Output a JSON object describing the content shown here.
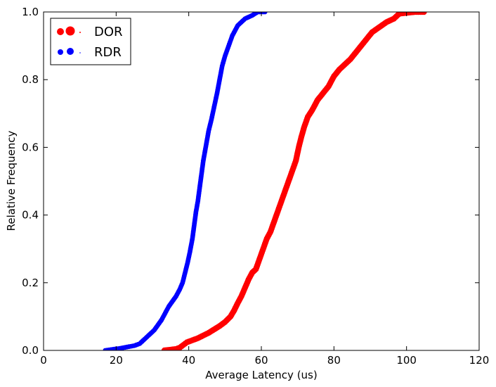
{
  "chart_data": {
    "type": "scatter",
    "title": "",
    "xlabel": "Average Latency (us)",
    "ylabel": "Relative Frequency",
    "xlim": [
      0,
      120
    ],
    "ylim": [
      0,
      1.0
    ],
    "xticks": [
      "0",
      "20",
      "40",
      "60",
      "80",
      "100",
      "120"
    ],
    "yticks": [
      "0.0",
      "0.2",
      "0.4",
      "0.6",
      "0.8",
      "1.0"
    ],
    "grid": false,
    "legend_position": "top-left",
    "series": [
      {
        "name": "DOR",
        "color": "#ff0000",
        "points": [
          [
            33.3,
            0.0
          ],
          [
            36.5,
            0.004
          ],
          [
            37.5,
            0.008
          ],
          [
            38.5,
            0.016
          ],
          [
            39.5,
            0.024
          ],
          [
            41.0,
            0.03
          ],
          [
            42.5,
            0.036
          ],
          [
            44.0,
            0.044
          ],
          [
            45.5,
            0.052
          ],
          [
            47.0,
            0.062
          ],
          [
            48.5,
            0.072
          ],
          [
            50.0,
            0.084
          ],
          [
            51.5,
            0.1
          ],
          [
            52.5,
            0.118
          ],
          [
            53.5,
            0.14
          ],
          [
            54.5,
            0.16
          ],
          [
            55.5,
            0.185
          ],
          [
            56.5,
            0.21
          ],
          [
            57.5,
            0.23
          ],
          [
            58.5,
            0.24
          ],
          [
            59.5,
            0.27
          ],
          [
            60.5,
            0.3
          ],
          [
            61.5,
            0.33
          ],
          [
            62.5,
            0.35
          ],
          [
            63.5,
            0.38
          ],
          [
            64.5,
            0.41
          ],
          [
            65.5,
            0.44
          ],
          [
            66.5,
            0.47
          ],
          [
            67.5,
            0.5
          ],
          [
            68.5,
            0.53
          ],
          [
            69.5,
            0.56
          ],
          [
            70.3,
            0.6
          ],
          [
            71.0,
            0.63
          ],
          [
            71.8,
            0.66
          ],
          [
            72.8,
            0.69
          ],
          [
            74.0,
            0.71
          ],
          [
            75.5,
            0.74
          ],
          [
            77.0,
            0.76
          ],
          [
            78.5,
            0.78
          ],
          [
            80.0,
            0.81
          ],
          [
            81.5,
            0.83
          ],
          [
            83.0,
            0.845
          ],
          [
            84.5,
            0.86
          ],
          [
            86.0,
            0.88
          ],
          [
            87.5,
            0.9
          ],
          [
            89.0,
            0.92
          ],
          [
            90.5,
            0.94
          ],
          [
            92.5,
            0.955
          ],
          [
            94.5,
            0.97
          ],
          [
            96.5,
            0.98
          ],
          [
            98.0,
            0.995
          ],
          [
            102.3,
            1.0
          ],
          [
            104.8,
            1.0
          ]
        ]
      },
      {
        "name": "RDR",
        "color": "#0000ff",
        "points": [
          [
            17.0,
            0.0
          ],
          [
            19.0,
            0.003
          ],
          [
            21.0,
            0.006
          ],
          [
            23.0,
            0.01
          ],
          [
            25.0,
            0.014
          ],
          [
            26.5,
            0.02
          ],
          [
            27.5,
            0.03
          ],
          [
            28.5,
            0.04
          ],
          [
            29.5,
            0.05
          ],
          [
            30.5,
            0.06
          ],
          [
            31.5,
            0.075
          ],
          [
            32.5,
            0.09
          ],
          [
            33.5,
            0.11
          ],
          [
            34.5,
            0.13
          ],
          [
            35.5,
            0.145
          ],
          [
            36.5,
            0.16
          ],
          [
            37.5,
            0.18
          ],
          [
            38.3,
            0.2
          ],
          [
            39.0,
            0.23
          ],
          [
            39.7,
            0.26
          ],
          [
            40.3,
            0.29
          ],
          [
            41.0,
            0.33
          ],
          [
            41.5,
            0.37
          ],
          [
            42.0,
            0.41
          ],
          [
            42.5,
            0.44
          ],
          [
            43.0,
            0.48
          ],
          [
            43.5,
            0.52
          ],
          [
            44.0,
            0.56
          ],
          [
            44.5,
            0.59
          ],
          [
            45.0,
            0.62
          ],
          [
            45.5,
            0.65
          ],
          [
            46.2,
            0.68
          ],
          [
            47.0,
            0.72
          ],
          [
            47.8,
            0.76
          ],
          [
            48.5,
            0.8
          ],
          [
            49.2,
            0.84
          ],
          [
            50.0,
            0.87
          ],
          [
            51.0,
            0.9
          ],
          [
            52.0,
            0.93
          ],
          [
            53.5,
            0.96
          ],
          [
            55.5,
            0.98
          ],
          [
            57.5,
            0.99
          ],
          [
            59.0,
            1.0
          ],
          [
            61.0,
            1.0
          ]
        ]
      }
    ]
  }
}
